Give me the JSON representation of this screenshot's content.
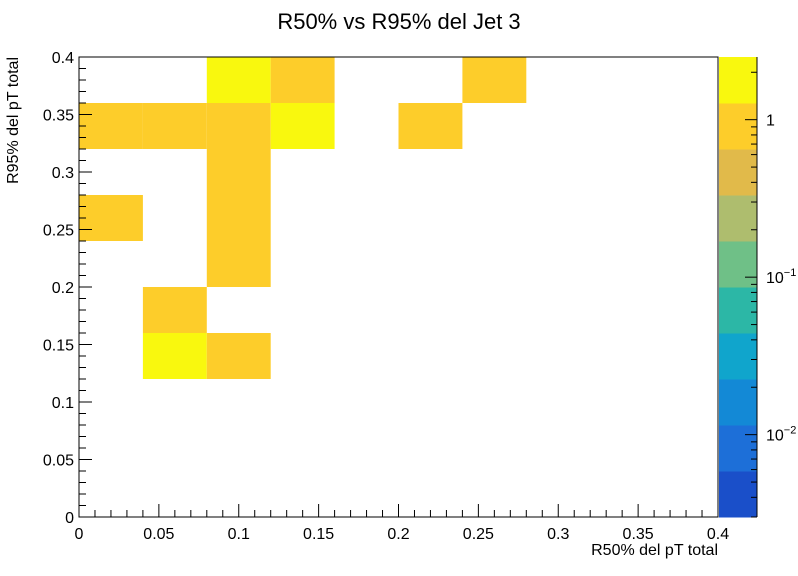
{
  "chart_data": {
    "type": "heatmap",
    "title": "R50% vs R95% del Jet 3",
    "xlabel": "R50% del pT total",
    "ylabel": "R95% del pT total",
    "xlim": [
      0,
      0.4
    ],
    "ylim": [
      0,
      0.4
    ],
    "x_bin_width": 0.04,
    "y_bin_width": 0.04,
    "x_ticks": [
      "0",
      "0.05",
      "0.1",
      "0.15",
      "0.2",
      "0.25",
      "0.3",
      "0.35",
      "0.4"
    ],
    "y_ticks": [
      "0",
      "0.05",
      "0.1",
      "0.15",
      "0.2",
      "0.25",
      "0.3",
      "0.35",
      "0.4"
    ],
    "z_scale": "log",
    "z_range": [
      0.003,
      2.5
    ],
    "z_ticks": [
      {
        "value": 1,
        "label": "1"
      },
      {
        "value": 0.1,
        "label": "10",
        "exp": "−1"
      },
      {
        "value": 0.01,
        "label": "10",
        "exp": "−2"
      }
    ],
    "palette": [
      "#1a4fc9",
      "#1d6fd8",
      "#1389d6",
      "#10a5cc",
      "#2cb7a6",
      "#6fc087",
      "#aebd6e",
      "#e1ba4a",
      "#fdcd2a",
      "#f9f80e"
    ],
    "cells": [
      {
        "x": 0.1,
        "y": 0.38,
        "value": 2
      },
      {
        "x": 0.14,
        "y": 0.38,
        "value": 1
      },
      {
        "x": 0.26,
        "y": 0.38,
        "value": 1
      },
      {
        "x": 0.02,
        "y": 0.34,
        "value": 1
      },
      {
        "x": 0.06,
        "y": 0.34,
        "value": 1
      },
      {
        "x": 0.1,
        "y": 0.34,
        "value": 1
      },
      {
        "x": 0.14,
        "y": 0.34,
        "value": 2
      },
      {
        "x": 0.22,
        "y": 0.34,
        "value": 1
      },
      {
        "x": 0.1,
        "y": 0.3,
        "value": 1
      },
      {
        "x": 0.02,
        "y": 0.26,
        "value": 1
      },
      {
        "x": 0.1,
        "y": 0.26,
        "value": 1
      },
      {
        "x": 0.1,
        "y": 0.22,
        "value": 1
      },
      {
        "x": 0.06,
        "y": 0.18,
        "value": 1
      },
      {
        "x": 0.06,
        "y": 0.14,
        "value": 2
      },
      {
        "x": 0.1,
        "y": 0.14,
        "value": 1
      }
    ]
  }
}
